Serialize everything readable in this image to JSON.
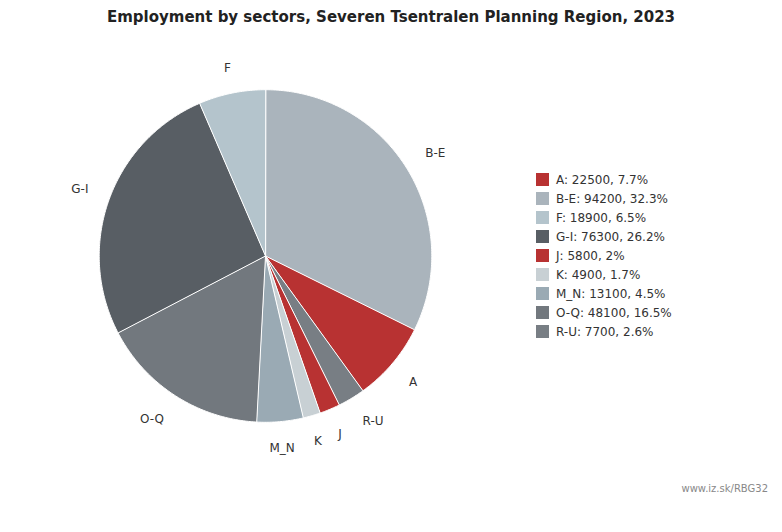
{
  "chart_data": {
    "type": "pie",
    "title": "Employment by sectors, Severen Tsentralen Planning Region, 2023",
    "categories": [
      "B-E",
      "A",
      "R-U",
      "J",
      "K",
      "M_N",
      "O-Q",
      "G-I",
      "F"
    ],
    "values": [
      94200,
      22500,
      7700,
      5800,
      4900,
      13100,
      48100,
      76300,
      18900
    ],
    "colors": [
      "#aab4bc",
      "#b83232",
      "#787e84",
      "#b83232",
      "#c8d0d4",
      "#9aaab4",
      "#72787e",
      "#585e64",
      "#b4c4cc"
    ],
    "legend": "right",
    "legend_categories": [
      "A",
      "B-E",
      "F",
      "G-I",
      "J",
      "K",
      "M_N",
      "O-Q",
      "R-U"
    ],
    "legend_labels": [
      "A: 22500, 7.7%",
      "B-E: 94200, 32.3%",
      "F: 18900, 6.5%",
      "G-I: 76300, 26.2%",
      "J: 5800, 2%",
      "K: 4900, 1.7%",
      "M_N: 13100, 4.5%",
      "O-Q: 48100, 16.5%",
      "R-U: 7700, 2.6%"
    ],
    "annotation": "www.iz.sk/RBG32"
  }
}
